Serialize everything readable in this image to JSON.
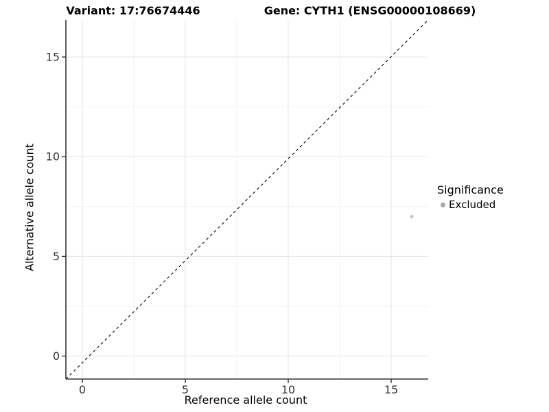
{
  "chart_data": {
    "type": "scatter",
    "titles": {
      "left": "Variant: 17:76674446",
      "right": "Gene: CYTH1 (ENSG00000108669)"
    },
    "xlabel": "Reference allele count",
    "ylabel": "Alternative allele count",
    "xlim": [
      -0.8,
      16.8
    ],
    "ylim": [
      -1.15,
      16.86
    ],
    "x_ticks": [
      0,
      5,
      10,
      15
    ],
    "y_ticks": [
      0,
      5,
      10,
      15
    ],
    "x_minor_ticks": [
      2.5,
      7.5,
      12.5
    ],
    "y_minor_ticks": [
      2.5,
      7.5,
      12.5
    ],
    "grid": "major and minor gridlines, very light gray, white background",
    "points": [
      {
        "x": 16,
        "y": 7,
        "series": "Excluded"
      }
    ],
    "identity_line": {
      "slope": 1,
      "intercept": 0,
      "style": "dashed",
      "color": "#111111"
    },
    "legend": {
      "title": "Significance",
      "position": "right",
      "items": [
        {
          "label": "Excluded",
          "key_color": "#a8a8a8"
        }
      ]
    },
    "colors": {
      "point": "#c8c8c8",
      "grid_major": "#e8e8e8",
      "grid_minor": "#f2f2f2",
      "axis_line": "#333333",
      "tick_label": "#333333",
      "text": "#000000"
    }
  }
}
